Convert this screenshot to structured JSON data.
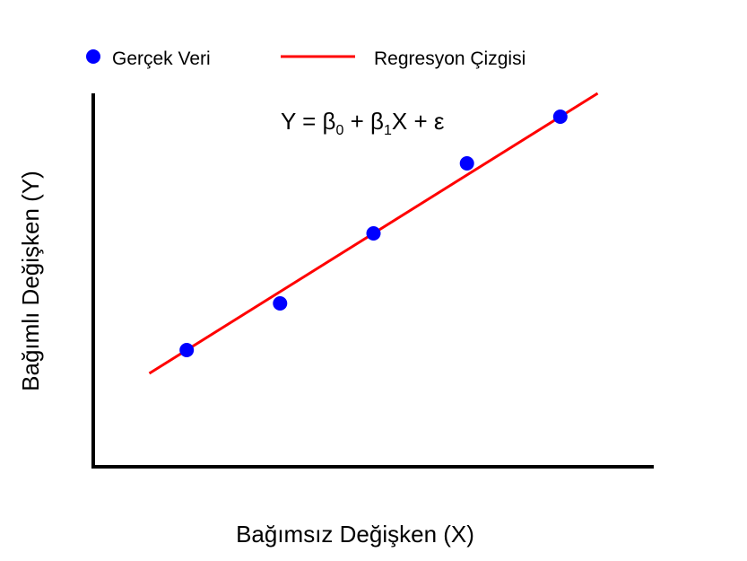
{
  "chart_data": {
    "type": "scatter",
    "title": "",
    "xlabel": "Bağımsız Değişken (X)",
    "ylabel": "Bağımlı Değişken (Y)",
    "annotation": {
      "equation_main": "Y = β",
      "sub0": "0",
      "equation_mid": " + β",
      "sub1": "1",
      "equation_end": "X + ε"
    },
    "legend": {
      "placement": "top-left",
      "entries": [
        {
          "label": "Gerçek Veri",
          "marker": "dot"
        },
        {
          "label": "Regresyon Çizgisi",
          "marker": "line"
        }
      ]
    },
    "xlim": [
      0,
      6
    ],
    "ylim": [
      0,
      8
    ],
    "grid": false,
    "ticks": false,
    "series": [
      {
        "type": "scatter",
        "color": "#0000ff",
        "x": [
          1,
          2,
          3,
          4,
          5
        ],
        "y": [
          2.5,
          3.5,
          5.0,
          6.5,
          7.5
        ]
      },
      {
        "type": "line",
        "color": "#ff0000",
        "x": [
          0.6,
          5.4
        ],
        "y": [
          2.0,
          8.0
        ]
      }
    ]
  }
}
